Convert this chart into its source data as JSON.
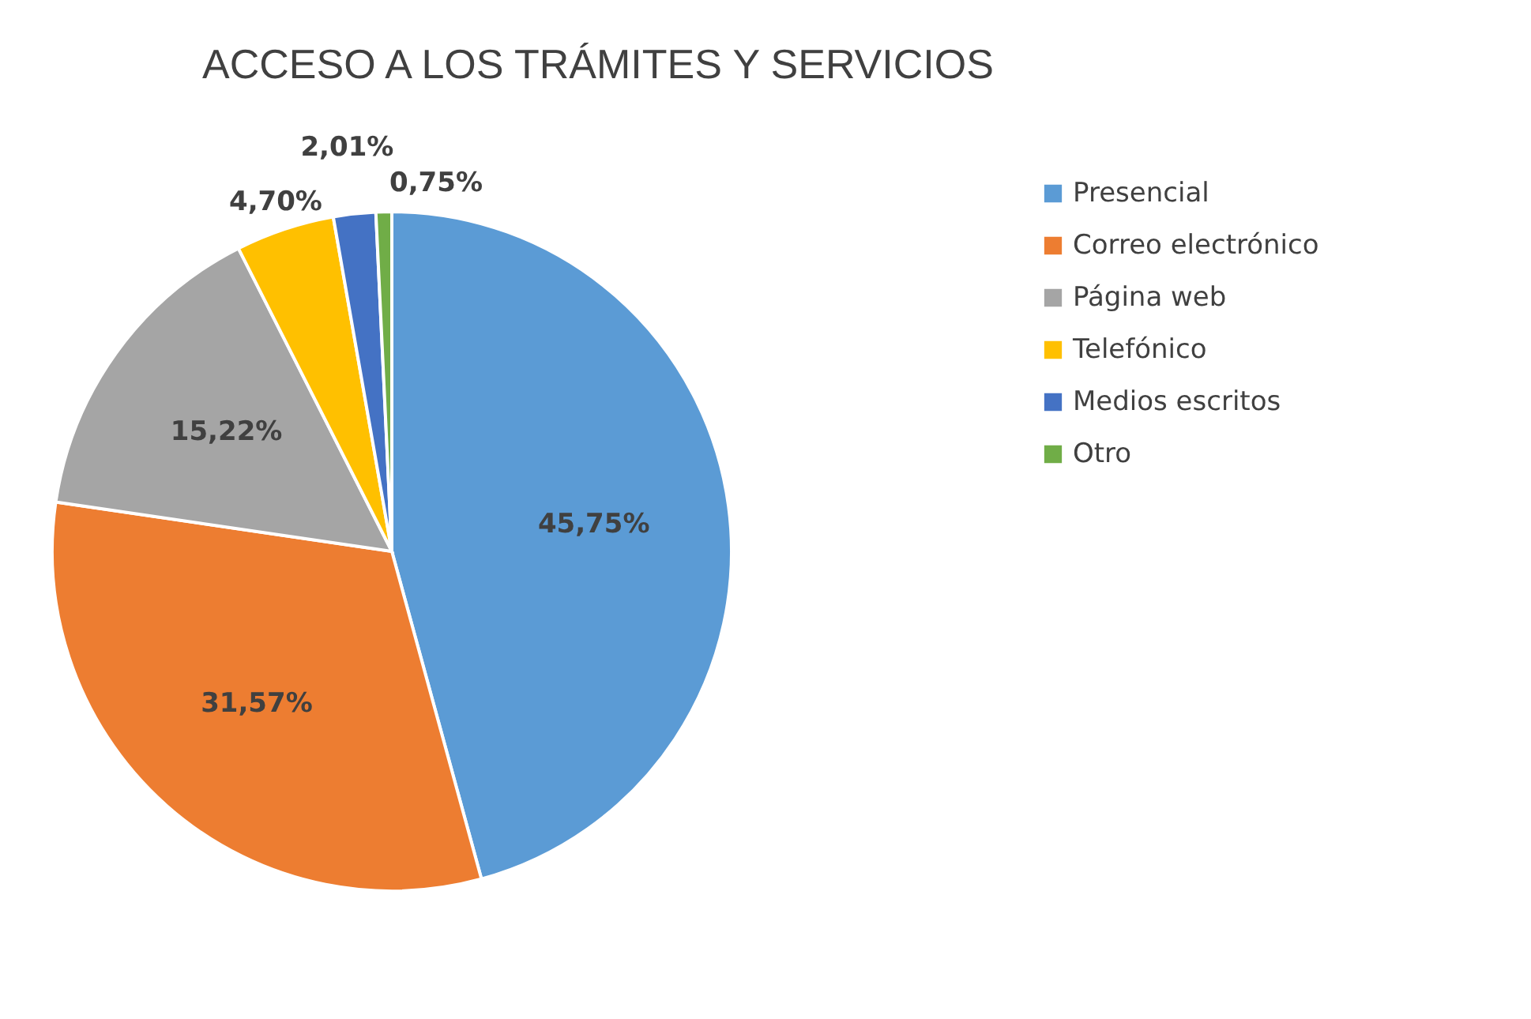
{
  "chart_data": {
    "type": "pie",
    "title": "ACCESO A LOS TRÁMITES Y SERVICIOS",
    "categories": [
      "Presencial",
      "Correo electrónico",
      "Página web",
      "Telefónico",
      "Medios escritos",
      "Otro"
    ],
    "values": [
      45.75,
      31.57,
      15.22,
      4.7,
      2.01,
      0.75
    ],
    "value_labels": [
      "45,75%",
      "31,57%",
      "15,22%",
      "4,70%",
      "2,01%",
      "0,75%"
    ],
    "colors": [
      "#5b9bd5",
      "#ed7d31",
      "#a5a5a5",
      "#ffc000",
      "#4472c4",
      "#70ad47"
    ],
    "legend": "right"
  }
}
